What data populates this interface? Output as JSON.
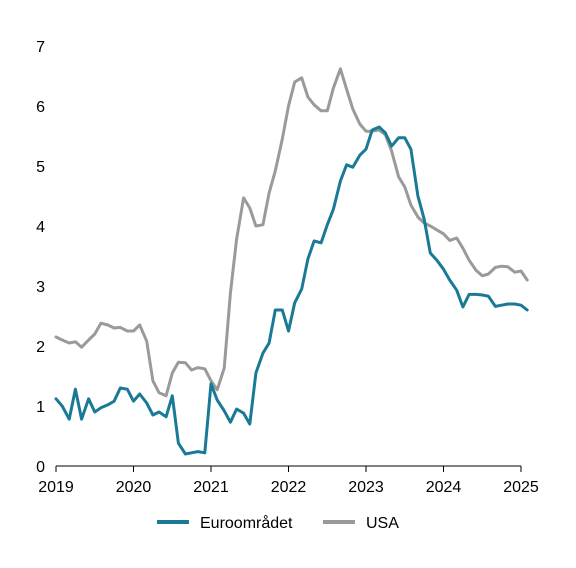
{
  "chart_data": {
    "type": "line",
    "title": "",
    "xlabel": "",
    "ylabel": "",
    "xlim": [
      2019.0,
      2025.0
    ],
    "ylim": [
      0,
      7
    ],
    "xticks": [
      "2019",
      "2020",
      "2021",
      "2022",
      "2023",
      "2024",
      "2025"
    ],
    "yticks": [
      "0",
      "1",
      "2",
      "3",
      "4",
      "5",
      "6",
      "7"
    ],
    "grid": false,
    "legend": "bottom",
    "series": [
      {
        "name": "Euroområdet",
        "color": "#1a7a96",
        "points": [
          [
            2019.0,
            1.12
          ],
          [
            2019.08,
            1.0
          ],
          [
            2019.17,
            0.78
          ],
          [
            2019.25,
            1.28
          ],
          [
            2019.33,
            0.78
          ],
          [
            2019.42,
            1.12
          ],
          [
            2019.5,
            0.9
          ],
          [
            2019.58,
            0.97
          ],
          [
            2019.67,
            1.02
          ],
          [
            2019.75,
            1.08
          ],
          [
            2019.83,
            1.3
          ],
          [
            2019.92,
            1.28
          ],
          [
            2020.0,
            1.08
          ],
          [
            2020.08,
            1.2
          ],
          [
            2020.17,
            1.05
          ],
          [
            2020.25,
            0.85
          ],
          [
            2020.33,
            0.9
          ],
          [
            2020.42,
            0.82
          ],
          [
            2020.5,
            1.17
          ],
          [
            2020.58,
            0.38
          ],
          [
            2020.67,
            0.2
          ],
          [
            2020.75,
            0.22
          ],
          [
            2020.83,
            0.24
          ],
          [
            2020.92,
            0.22
          ],
          [
            2021.0,
            1.37
          ],
          [
            2021.08,
            1.1
          ],
          [
            2021.17,
            0.92
          ],
          [
            2021.25,
            0.73
          ],
          [
            2021.33,
            0.95
          ],
          [
            2021.42,
            0.88
          ],
          [
            2021.5,
            0.7
          ],
          [
            2021.58,
            1.55
          ],
          [
            2021.67,
            1.88
          ],
          [
            2021.75,
            2.05
          ],
          [
            2021.83,
            2.6
          ],
          [
            2021.92,
            2.6
          ],
          [
            2022.0,
            2.25
          ],
          [
            2022.08,
            2.72
          ],
          [
            2022.17,
            2.95
          ],
          [
            2022.25,
            3.45
          ],
          [
            2022.33,
            3.75
          ],
          [
            2022.42,
            3.72
          ],
          [
            2022.5,
            4.02
          ],
          [
            2022.58,
            4.28
          ],
          [
            2022.67,
            4.75
          ],
          [
            2022.75,
            5.02
          ],
          [
            2022.83,
            4.98
          ],
          [
            2022.92,
            5.18
          ],
          [
            2023.0,
            5.28
          ],
          [
            2023.08,
            5.6
          ],
          [
            2023.17,
            5.65
          ],
          [
            2023.25,
            5.55
          ],
          [
            2023.33,
            5.33
          ],
          [
            2023.42,
            5.47
          ],
          [
            2023.5,
            5.47
          ],
          [
            2023.58,
            5.28
          ],
          [
            2023.67,
            4.5
          ],
          [
            2023.75,
            4.12
          ],
          [
            2023.83,
            3.55
          ],
          [
            2023.92,
            3.42
          ],
          [
            2024.0,
            3.28
          ],
          [
            2024.08,
            3.1
          ],
          [
            2024.17,
            2.93
          ],
          [
            2024.25,
            2.65
          ],
          [
            2024.33,
            2.86
          ],
          [
            2024.42,
            2.86
          ],
          [
            2024.5,
            2.85
          ],
          [
            2024.58,
            2.83
          ],
          [
            2024.67,
            2.66
          ],
          [
            2024.75,
            2.68
          ],
          [
            2024.83,
            2.7
          ],
          [
            2024.92,
            2.7
          ],
          [
            2025.0,
            2.68
          ],
          [
            2025.08,
            2.6
          ]
        ]
      },
      {
        "name": "USA",
        "color": "#9a9a9a",
        "points": [
          [
            2019.0,
            2.15
          ],
          [
            2019.08,
            2.1
          ],
          [
            2019.17,
            2.05
          ],
          [
            2019.25,
            2.07
          ],
          [
            2019.33,
            1.98
          ],
          [
            2019.42,
            2.1
          ],
          [
            2019.5,
            2.2
          ],
          [
            2019.58,
            2.38
          ],
          [
            2019.67,
            2.35
          ],
          [
            2019.75,
            2.3
          ],
          [
            2019.83,
            2.31
          ],
          [
            2019.92,
            2.25
          ],
          [
            2020.0,
            2.25
          ],
          [
            2020.08,
            2.35
          ],
          [
            2020.17,
            2.08
          ],
          [
            2020.25,
            1.42
          ],
          [
            2020.33,
            1.22
          ],
          [
            2020.42,
            1.17
          ],
          [
            2020.5,
            1.55
          ],
          [
            2020.58,
            1.73
          ],
          [
            2020.67,
            1.72
          ],
          [
            2020.75,
            1.6
          ],
          [
            2020.83,
            1.64
          ],
          [
            2020.92,
            1.62
          ],
          [
            2021.0,
            1.42
          ],
          [
            2021.08,
            1.27
          ],
          [
            2021.17,
            1.63
          ],
          [
            2021.25,
            2.88
          ],
          [
            2021.33,
            3.78
          ],
          [
            2021.42,
            4.47
          ],
          [
            2021.5,
            4.3
          ],
          [
            2021.58,
            4.0
          ],
          [
            2021.67,
            4.02
          ],
          [
            2021.75,
            4.55
          ],
          [
            2021.83,
            4.92
          ],
          [
            2021.92,
            5.45
          ],
          [
            2022.0,
            6.0
          ],
          [
            2022.08,
            6.4
          ],
          [
            2022.17,
            6.47
          ],
          [
            2022.25,
            6.15
          ],
          [
            2022.33,
            6.02
          ],
          [
            2022.42,
            5.92
          ],
          [
            2022.5,
            5.92
          ],
          [
            2022.58,
            6.3
          ],
          [
            2022.67,
            6.62
          ],
          [
            2022.75,
            6.28
          ],
          [
            2022.83,
            5.95
          ],
          [
            2022.92,
            5.7
          ],
          [
            2023.0,
            5.58
          ],
          [
            2023.08,
            5.58
          ],
          [
            2023.17,
            5.6
          ],
          [
            2023.25,
            5.52
          ],
          [
            2023.33,
            5.25
          ],
          [
            2023.42,
            4.82
          ],
          [
            2023.5,
            4.65
          ],
          [
            2023.58,
            4.35
          ],
          [
            2023.67,
            4.15
          ],
          [
            2023.75,
            4.05
          ],
          [
            2023.83,
            4.0
          ],
          [
            2023.92,
            3.93
          ],
          [
            2024.0,
            3.87
          ],
          [
            2024.08,
            3.76
          ],
          [
            2024.17,
            3.8
          ],
          [
            2024.25,
            3.63
          ],
          [
            2024.33,
            3.43
          ],
          [
            2024.42,
            3.26
          ],
          [
            2024.5,
            3.17
          ],
          [
            2024.58,
            3.2
          ],
          [
            2024.67,
            3.31
          ],
          [
            2024.75,
            3.33
          ],
          [
            2024.83,
            3.32
          ],
          [
            2024.92,
            3.23
          ],
          [
            2025.0,
            3.25
          ],
          [
            2025.08,
            3.1
          ]
        ]
      }
    ]
  }
}
